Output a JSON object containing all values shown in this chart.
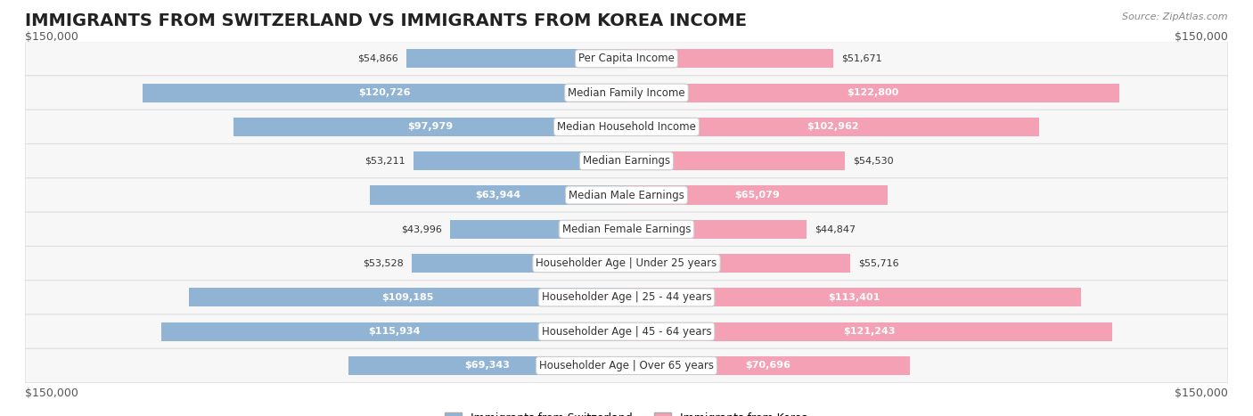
{
  "title": "IMMIGRANTS FROM SWITZERLAND VS IMMIGRANTS FROM KOREA INCOME",
  "source": "Source: ZipAtlas.com",
  "categories": [
    "Per Capita Income",
    "Median Family Income",
    "Median Household Income",
    "Median Earnings",
    "Median Male Earnings",
    "Median Female Earnings",
    "Householder Age | Under 25 years",
    "Householder Age | 25 - 44 years",
    "Householder Age | 45 - 64 years",
    "Householder Age | Over 65 years"
  ],
  "switzerland_values": [
    54866,
    120726,
    97979,
    53211,
    63944,
    43996,
    53528,
    109185,
    115934,
    69343
  ],
  "korea_values": [
    51671,
    122800,
    102962,
    54530,
    65079,
    44847,
    55716,
    113401,
    121243,
    70696
  ],
  "switzerland_color": "#92b4d4",
  "korea_color": "#f4a0b5",
  "switzerland_label_color": "#5a8fc2",
  "korea_label_color": "#e87899",
  "bar_bg_color": "#f0f0f0",
  "row_bg_color": "#f7f7f7",
  "row_border_color": "#e0e0e0",
  "center_label_bg": "#ffffff",
  "center_label_border": "#cccccc",
  "max_value": 150000,
  "xlabel_left": "$150,000",
  "xlabel_right": "$150,000",
  "legend_switzerland": "Immigrants from Switzerland",
  "legend_korea": "Immigrants from Korea",
  "title_fontsize": 14,
  "label_fontsize": 8.5,
  "category_fontsize": 8.5,
  "value_fontsize": 8,
  "bar_height": 0.55
}
